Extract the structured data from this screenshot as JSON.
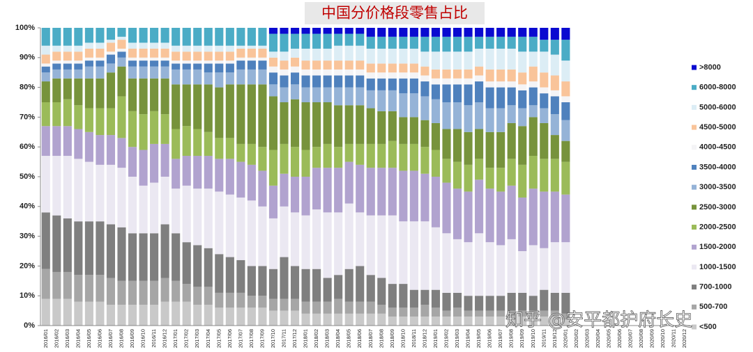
{
  "chart_data": {
    "type": "stacked_bar",
    "title": "中国分价格段零售占比",
    "watermark": "知乎 @安平都护府长史",
    "categories": [
      "2016/01",
      "2016/02",
      "2016/03",
      "2016/04",
      "2016/05",
      "2016/06",
      "2016/07",
      "2016/08",
      "2016/09",
      "2016/10",
      "2016/11",
      "2016/12",
      "2017/01",
      "2017/02",
      "2017/03",
      "2017/04",
      "2017/05",
      "2017/06",
      "2017/07",
      "2017/08",
      "2017/09",
      "2017/10",
      "2017/11",
      "2017/12",
      "2018/01",
      "2018/02",
      "2018/03",
      "2018/04",
      "2018/05",
      "2018/06",
      "2018/07",
      "2018/08",
      "2018/09",
      "2018/10",
      "2018/11",
      "2018/12",
      "2019/01",
      "2019/02",
      "2019/03",
      "2019/04",
      "2019/05",
      "2019/06",
      "2019/07",
      "2019/08",
      "2019/09",
      "2019/10",
      "2019/11",
      "2019/12",
      "2020/01",
      "2020/02",
      "2020/03",
      "2020/04",
      "2020/05",
      "2020/06",
      "2020/07",
      "2020/08",
      "2020/09",
      "2020/10",
      "2020/11",
      "2020/12"
    ],
    "series": [
      {
        "name": ">8000",
        "color": "#0a0ad0",
        "values": [
          0,
          0,
          0,
          0,
          0,
          0,
          0,
          0,
          0,
          0,
          0,
          0,
          0,
          0,
          0,
          0,
          0,
          0,
          0,
          0,
          0,
          2,
          2,
          2,
          2,
          2,
          2,
          2,
          2,
          2,
          3,
          3,
          3,
          3,
          3,
          3,
          3,
          3,
          3,
          3,
          3,
          3,
          3,
          3,
          3,
          3,
          4,
          4,
          4,
          null,
          null,
          null,
          null,
          null,
          null,
          null,
          null,
          null,
          null,
          null
        ]
      },
      {
        "name": "6000-8000",
        "color": "#4bacc6",
        "values": [
          6,
          6,
          6,
          6,
          5,
          5,
          4,
          3,
          5,
          5,
          5,
          5,
          6,
          6,
          6,
          6,
          6,
          6,
          6,
          6,
          6,
          6,
          6,
          5,
          5,
          5,
          5,
          4,
          4,
          4,
          4,
          4,
          4,
          4,
          4,
          5,
          5,
          5,
          5,
          5,
          4,
          4,
          4,
          4,
          5,
          5,
          4,
          5,
          7,
          null,
          null,
          null,
          null,
          null,
          null,
          null,
          null,
          null,
          null,
          null
        ]
      },
      {
        "name": "5000-6000",
        "color": "#dcedf5",
        "values": [
          3,
          2,
          2,
          2,
          2,
          2,
          1,
          1,
          2,
          2,
          2,
          2,
          2,
          2,
          2,
          2,
          2,
          2,
          1,
          1,
          1,
          2,
          3,
          3,
          4,
          4,
          4,
          5,
          5,
          5,
          5,
          5,
          5,
          5,
          5,
          5,
          6,
          6,
          6,
          6,
          6,
          7,
          7,
          7,
          7,
          5,
          7,
          7,
          7,
          null,
          null,
          null,
          null,
          null,
          null,
          null,
          null,
          null,
          null,
          null
        ]
      },
      {
        "name": "4500-5000",
        "color": "#f9c49a",
        "values": [
          3,
          3,
          3,
          3,
          3,
          3,
          3,
          3,
          3,
          3,
          3,
          3,
          3,
          3,
          3,
          3,
          3,
          3,
          3,
          3,
          3,
          3,
          3,
          3,
          3,
          3,
          3,
          3,
          3,
          3,
          3,
          3,
          3,
          3,
          3,
          3,
          3,
          3,
          3,
          3,
          3,
          4,
          4,
          4,
          4,
          5,
          5,
          5,
          5,
          null,
          null,
          null,
          null,
          null,
          null,
          null,
          null,
          null,
          null,
          null
        ]
      },
      {
        "name": "4000-4500",
        "color": "#f4f4f6",
        "values": [
          1,
          1,
          1,
          1,
          1,
          1,
          1,
          1,
          1,
          1,
          1,
          1,
          1,
          1,
          1,
          1,
          1,
          1,
          1,
          1,
          1,
          2,
          2,
          2,
          2,
          2,
          2,
          2,
          2,
          2,
          2,
          2,
          2,
          2,
          2,
          2,
          2,
          2,
          2,
          2,
          2,
          2,
          2,
          2,
          2,
          2,
          2,
          2,
          2,
          null,
          null,
          null,
          null,
          null,
          null,
          null,
          null,
          null,
          null,
          null
        ]
      },
      {
        "name": "3500-4000",
        "color": "#4f81bd",
        "values": [
          2,
          2,
          2,
          2,
          2,
          2,
          3,
          2,
          2,
          2,
          2,
          2,
          2,
          2,
          2,
          3,
          3,
          3,
          3,
          3,
          3,
          4,
          4,
          4,
          4,
          4,
          4,
          4,
          4,
          4,
          4,
          4,
          4,
          5,
          5,
          5,
          5,
          6,
          6,
          7,
          7,
          7,
          7,
          6,
          6,
          6,
          5,
          6,
          6,
          null,
          null,
          null,
          null,
          null,
          null,
          null,
          null,
          null,
          null,
          null
        ]
      },
      {
        "name": "3000-3500",
        "color": "#95b3d7",
        "values": [
          3,
          3,
          3,
          3,
          4,
          4,
          3,
          3,
          4,
          4,
          4,
          4,
          5,
          5,
          5,
          4,
          5,
          4,
          5,
          5,
          5,
          4,
          5,
          5,
          5,
          5,
          5,
          6,
          6,
          6,
          6,
          7,
          7,
          8,
          8,
          8,
          8,
          9,
          9,
          9,
          9,
          8,
          8,
          6,
          6,
          4,
          5,
          7,
          7,
          null,
          null,
          null,
          null,
          null,
          null,
          null,
          null,
          null,
          null,
          null
        ]
      },
      {
        "name": "2500-3000",
        "color": "#77933c",
        "values": [
          7,
          8,
          7,
          9,
          10,
          10,
          12,
          10,
          11,
          12,
          11,
          12,
          15,
          14,
          15,
          16,
          17,
          18,
          20,
          20,
          21,
          18,
          14,
          16,
          16,
          15,
          14,
          14,
          13,
          13,
          12,
          11,
          10,
          9,
          9,
          9,
          9,
          10,
          11,
          11,
          10,
          12,
          12,
          12,
          13,
          13,
          12,
          8,
          7,
          null,
          null,
          null,
          null,
          null,
          null,
          null,
          null,
          null,
          null,
          null
        ]
      },
      {
        "name": "2000-2500",
        "color": "#9bbb59",
        "values": [
          8,
          8,
          9,
          8,
          8,
          9,
          9,
          14,
          12,
          12,
          11,
          10,
          10,
          10,
          9,
          8,
          7,
          7,
          6,
          7,
          8,
          12,
          10,
          10,
          9,
          7,
          8,
          7,
          6,
          7,
          8,
          8,
          9,
          9,
          9,
          9,
          9,
          8,
          9,
          9,
          7,
          7,
          8,
          9,
          11,
          11,
          11,
          11,
          11,
          null,
          null,
          null,
          null,
          null,
          null,
          null,
          null,
          null,
          null,
          null
        ]
      },
      {
        "name": "1500-2000",
        "color": "#b1a3cf",
        "values": [
          10,
          10,
          10,
          10,
          10,
          10,
          10,
          10,
          10,
          12,
          13,
          11,
          10,
          10,
          11,
          11,
          11,
          12,
          12,
          12,
          12,
          11,
          11,
          12,
          13,
          14,
          15,
          15,
          14,
          16,
          16,
          16,
          16,
          17,
          17,
          16,
          17,
          17,
          17,
          17,
          18,
          18,
          18,
          18,
          18,
          19,
          19,
          17,
          16,
          null,
          null,
          null,
          null,
          null,
          null,
          null,
          null,
          null,
          null,
          null
        ]
      },
      {
        "name": "1000-1500",
        "color": "#ebe8f2",
        "values": [
          19,
          20,
          21,
          21,
          20,
          19,
          20,
          20,
          19,
          16,
          17,
          16,
          15,
          19,
          19,
          20,
          21,
          21,
          21,
          22,
          20,
          17,
          17,
          18,
          18,
          20,
          22,
          21,
          22,
          18,
          20,
          21,
          23,
          21,
          23,
          23,
          21,
          20,
          18,
          18,
          21,
          18,
          17,
          18,
          14,
          17,
          14,
          17,
          17,
          null,
          null,
          null,
          null,
          null,
          null,
          null,
          null,
          null,
          null,
          null
        ]
      },
      {
        "name": "700-1000",
        "color": "#7f7f7f",
        "values": [
          19,
          19,
          18,
          18,
          18,
          18,
          18,
          18,
          16,
          16,
          16,
          18,
          16,
          14,
          14,
          13,
          13,
          12,
          11,
          10,
          10,
          10,
          14,
          11,
          11,
          11,
          8,
          8,
          11,
          12,
          9,
          9,
          8,
          8,
          6,
          5,
          6,
          6,
          5,
          5,
          5,
          5,
          5,
          6,
          6,
          5,
          7,
          6,
          7,
          null,
          null,
          null,
          null,
          null,
          null,
          null,
          null,
          null,
          null,
          null
        ]
      },
      {
        "name": "500-700",
        "color": "#a6a6a6",
        "values": [
          10,
          9,
          9,
          9,
          9,
          9,
          9,
          8,
          8,
          8,
          8,
          8,
          7,
          6,
          6,
          6,
          5,
          5,
          5,
          4,
          4,
          4,
          4,
          4,
          4,
          4,
          4,
          5,
          4,
          4,
          4,
          3,
          3,
          3,
          3,
          4,
          3,
          2,
          3,
          2,
          2,
          2,
          2,
          2,
          2,
          2,
          2,
          2,
          2,
          null,
          null,
          null,
          null,
          null,
          null,
          null,
          null,
          null,
          null,
          null
        ]
      },
      {
        "name": "<500",
        "color": "#c9c9c9",
        "values": [
          9,
          9,
          9,
          8,
          8,
          8,
          7,
          7,
          7,
          7,
          7,
          8,
          8,
          8,
          7,
          7,
          6,
          6,
          6,
          6,
          6,
          5,
          5,
          5,
          4,
          4,
          4,
          4,
          4,
          4,
          4,
          4,
          3,
          3,
          3,
          3,
          3,
          3,
          3,
          3,
          3,
          3,
          3,
          3,
          3,
          3,
          3,
          3,
          2,
          null,
          null,
          null,
          null,
          null,
          null,
          null,
          null,
          null,
          null,
          null
        ]
      }
    ],
    "ylim": [
      0,
      100
    ],
    "yticks": [
      {
        "value": 0,
        "label": "0%"
      },
      {
        "value": 10,
        "label": "10%"
      },
      {
        "value": 20,
        "label": "20%"
      },
      {
        "value": 30,
        "label": "30%"
      },
      {
        "value": 40,
        "label": "40%"
      },
      {
        "value": 50,
        "label": "50%"
      },
      {
        "value": 60,
        "label": "60%"
      },
      {
        "value": 70,
        "label": "70%"
      },
      {
        "value": 80,
        "label": "80%"
      },
      {
        "value": 90,
        "label": "90%"
      },
      {
        "value": 100,
        "label": "100%"
      }
    ],
    "grid": false,
    "legend": "right"
  }
}
